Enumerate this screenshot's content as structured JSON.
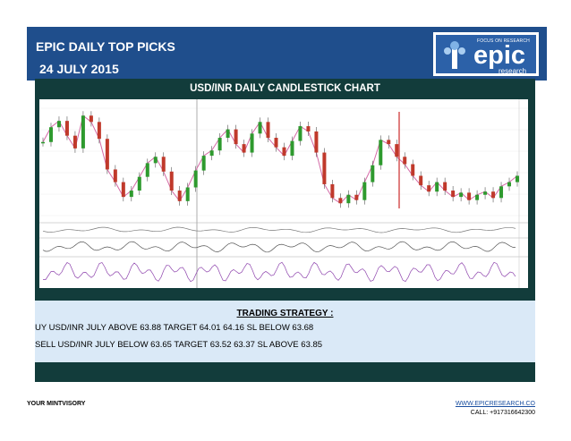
{
  "header": {
    "title": "EPIC DAILY TOP PICKS",
    "date": "24 JULY 2015"
  },
  "logo": {
    "main": "epic",
    "sub": "research",
    "tagline": "FOCUS ON RESEARCH"
  },
  "chart": {
    "title": "USD/INR DAILY CANDLESTICK CHART"
  },
  "strategy": {
    "title": "TRADING STRATEGY :",
    "lines": [
      "UY USD/INR JULY ABOVE 63.88 TARGET 64.01 64.16 SL BELOW 63.68",
      "SELL USD/INR JULY BELOW 63.65 TARGET 63.52 63.37 SL ABOVE 63.85"
    ]
  },
  "footer": {
    "left": "YOUR MINTVISORY",
    "link": "WWW.EPICRESEARCH.CO",
    "call": "CALL: +917316642300"
  },
  "chart_data": {
    "type": "line",
    "title": "USD/INR DAILY CANDLESTICK CHART",
    "xlabel": "",
    "ylabel": "",
    "x": [
      0,
      1,
      2,
      3,
      4,
      5,
      6,
      7,
      8,
      9,
      10,
      11,
      12,
      13,
      14,
      15,
      16,
      17,
      18,
      19,
      20,
      21,
      22,
      23,
      24,
      25,
      26,
      27,
      28,
      29,
      30,
      31,
      32,
      33,
      34,
      35,
      36,
      37,
      38,
      39,
      40,
      41,
      42,
      43,
      44,
      45,
      46,
      47,
      48,
      49,
      50,
      51,
      52,
      53,
      54,
      55,
      56,
      57,
      58,
      59
    ],
    "series": [
      {
        "values": [
          0.68,
          0.82,
          0.88,
          0.74,
          0.62,
          0.93,
          0.87,
          0.71,
          0.42,
          0.3,
          0.16,
          0.22,
          0.35,
          0.48,
          0.54,
          0.4,
          0.22,
          0.12,
          0.25,
          0.41,
          0.55,
          0.6,
          0.72,
          0.8,
          0.66,
          0.58,
          0.76,
          0.87,
          0.72,
          0.63,
          0.55,
          0.69,
          0.83,
          0.78,
          0.58,
          0.28,
          0.15,
          0.1,
          0.18,
          0.13,
          0.3,
          0.46,
          0.7,
          0.66,
          0.54,
          0.47,
          0.36,
          0.27,
          0.21,
          0.3,
          0.22,
          0.16,
          0.2,
          0.13,
          0.18,
          0.21,
          0.15,
          0.26,
          0.3,
          0.36
        ]
      }
    ]
  }
}
